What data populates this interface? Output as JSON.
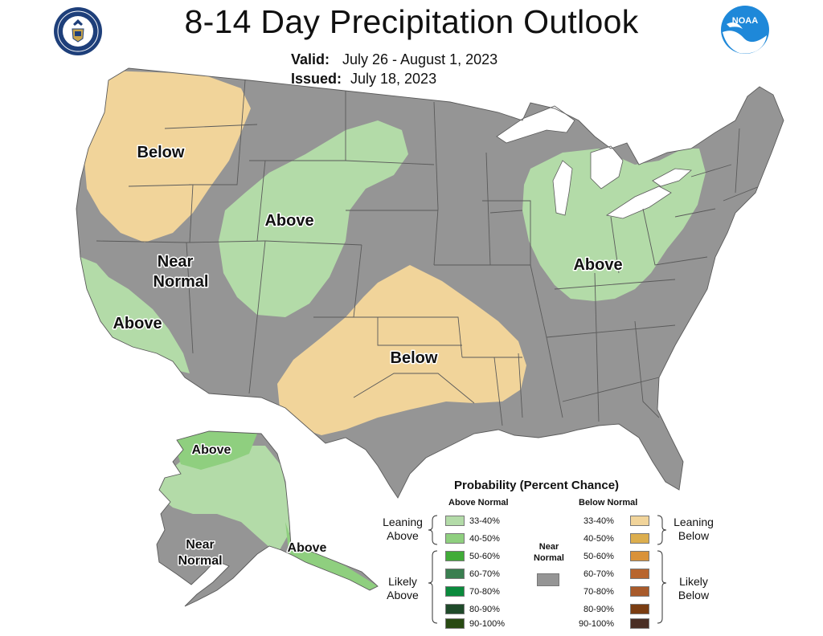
{
  "header": {
    "title": "8-14 Day Precipitation Outlook",
    "valid_label": "Valid:",
    "valid_value": "July 26 - August 1, 2023",
    "issued_label": "Issued:",
    "issued_value": "July 18, 2023"
  },
  "logos": {
    "left_icon": "department-of-commerce-seal",
    "right_icon": "noaa-logo",
    "right_text": "NOAA"
  },
  "map": {
    "colors": {
      "near_normal": "#959595",
      "above_33_40": "#b3dba8",
      "above_40_50": "#8fcf7f",
      "below_33_40": "#f1d49a",
      "outside": "#ffffff",
      "borders": "#5a5a5a"
    },
    "region_labels": [
      {
        "text": "Below",
        "category": "below_33_40"
      },
      {
        "text": "Above",
        "category": "above_33_40"
      },
      {
        "text": "Near",
        "category": "near_normal"
      },
      {
        "text": "Normal",
        "category": "near_normal"
      },
      {
        "text": "Above",
        "category": "above_33_40"
      },
      {
        "text": "Below",
        "category": "below_33_40"
      },
      {
        "text": "Above",
        "category": "above_33_40"
      },
      {
        "text": "Above",
        "category": "above_40_50"
      },
      {
        "text": "Near",
        "category": "near_normal"
      },
      {
        "text": "Normal",
        "category": "near_normal"
      },
      {
        "text": "Above",
        "category": "above_33_40"
      }
    ]
  },
  "legend": {
    "title": "Probability (Percent Chance)",
    "above_header": "Above Normal",
    "below_header": "Below Normal",
    "near_normal_line1": "Near",
    "near_normal_line2": "Normal",
    "leaning_above_1": "Leaning",
    "leaning_above_2": "Above",
    "likely_above_1": "Likely",
    "likely_above_2": "Above",
    "leaning_below_1": "Leaning",
    "leaning_below_2": "Below",
    "likely_below_1": "Likely",
    "likely_below_2": "Below",
    "above": [
      {
        "label": "33-40%",
        "color": "#b3dba8"
      },
      {
        "label": "40-50%",
        "color": "#8fcf7f"
      },
      {
        "label": "50-60%",
        "color": "#41ab38"
      },
      {
        "label": "60-70%",
        "color": "#3a7f50"
      },
      {
        "label": "70-80%",
        "color": "#0a8a3c"
      },
      {
        "label": "80-90%",
        "color": "#1f4a2a"
      },
      {
        "label": "90-100%",
        "color": "#284a12"
      }
    ],
    "below": [
      {
        "label": "33-40%",
        "color": "#f1d49a"
      },
      {
        "label": "40-50%",
        "color": "#dcae4e"
      },
      {
        "label": "50-60%",
        "color": "#d9923a"
      },
      {
        "label": "60-70%",
        "color": "#b8652e"
      },
      {
        "label": "70-80%",
        "color": "#a85a2a"
      },
      {
        "label": "80-90%",
        "color": "#7a3d12"
      },
      {
        "label": "90-100%",
        "color": "#4a2e24"
      }
    ]
  }
}
